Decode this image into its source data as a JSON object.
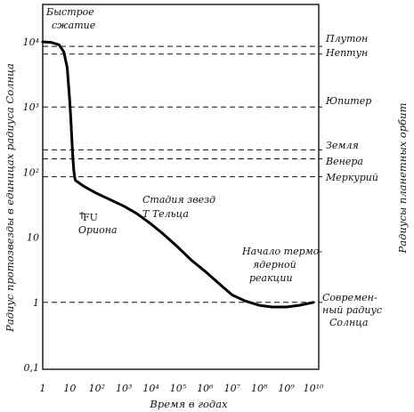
{
  "chart_data": {
    "type": "line",
    "xlabel": "Время в годах",
    "ylabel_left": "Радиус протозвезды в единицах радиуса Солнца",
    "ylabel_right": "Радиусы планетных орбит",
    "x_scale": "log",
    "y_scale": "log",
    "xlim": [
      1,
      10000000000
    ],
    "ylim": [
      0.1,
      20000
    ],
    "x_ticks": [
      "1",
      "10",
      "10²",
      "10³",
      "10⁴",
      "10⁵",
      "10⁶",
      "10⁷",
      "10⁸",
      "10⁹",
      "10¹⁰"
    ],
    "y_ticks": [
      "10⁴",
      "10³",
      "10²",
      "10",
      "1",
      "0,1"
    ],
    "series": [
      {
        "x": [
          1,
          2,
          4,
          6,
          8,
          10,
          11,
          12,
          13,
          14,
          15,
          16,
          18,
          20,
          30,
          50,
          100,
          300,
          1000,
          3000,
          10000,
          30000,
          100000,
          300000,
          1000000,
          3000000,
          10000000,
          30000000,
          100000000,
          300000000,
          1000000000,
          3000000000,
          10000000000
        ],
        "y": [
          10000,
          9800,
          9000,
          7000,
          4000,
          1200,
          600,
          300,
          160,
          110,
          85,
          75,
          72,
          70,
          62,
          55,
          47,
          38,
          30,
          23,
          16,
          11,
          7,
          4.5,
          3,
          2,
          1.3,
          1.05,
          0.9,
          0.85,
          0.85,
          0.9,
          1.0
        ]
      }
    ],
    "reference_lines": [
      {
        "label": "Плутон",
        "y": 8500
      },
      {
        "label": "Нептун",
        "y": 6500
      },
      {
        "label": "Юпитер",
        "y": 1000
      },
      {
        "label": "Земля",
        "y": 220
      },
      {
        "label": "Венера",
        "y": 160
      },
      {
        "label": "Меркурий",
        "y": 85
      },
      {
        "label": "Современный радиус Солнца",
        "y": 1
      }
    ],
    "annotations": [
      {
        "text_lines": [
          "Быстрое",
          "сжатие"
        ],
        "x": 2,
        "y": 20000
      },
      {
        "text_lines": [
          "FU",
          "Ориона"
        ],
        "x": 13,
        "y": 75
      },
      {
        "text_lines": [
          "Стадия звезд",
          "T Тельца"
        ],
        "x": 10000,
        "y": 45
      },
      {
        "text_lines": [
          "Начало термо-",
          "ядерной",
          "реакции"
        ],
        "x": 10000000,
        "y": 1.05
      }
    ],
    "right_labels": {
      "pluto": "Плутон",
      "neptune": "Нептун",
      "jupiter": "Юпитер",
      "earth": "Земля",
      "venus": "Венера",
      "mercury": "Меркурий",
      "sun_lines": [
        "Современ-",
        "ный радиус",
        "Солнца"
      ]
    }
  }
}
